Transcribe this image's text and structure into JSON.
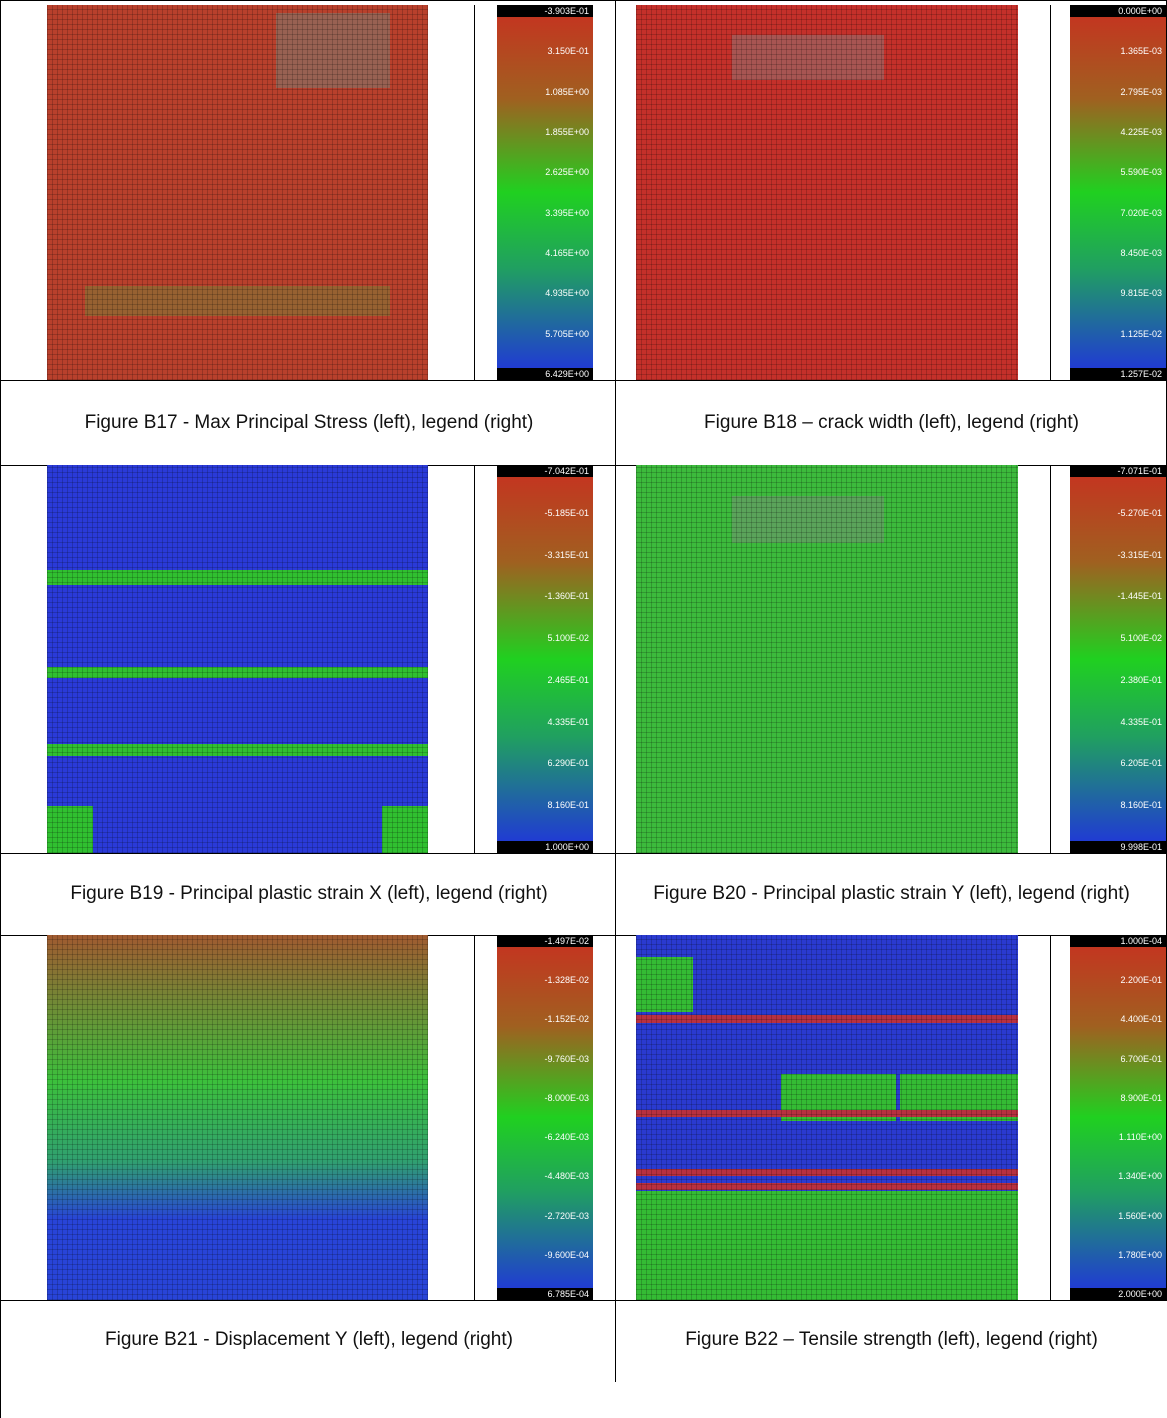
{
  "figures": [
    {
      "caption": "Figure B17 - Max Principal Stress (left), legend (right)",
      "legend": [
        "-3.903E-01",
        "3.150E-01",
        "1.085E+00",
        "1.855E+00",
        "2.625E+00",
        "3.395E+00",
        "4.165E+00",
        "4.935E+00",
        "5.705E+00",
        "6.429E+00"
      ]
    },
    {
      "caption": "Figure B18 – crack width (left), legend (right)",
      "legend": [
        "0.000E+00",
        "1.365E-03",
        "2.795E-03",
        "4.225E-03",
        "5.590E-03",
        "7.020E-03",
        "8.450E-03",
        "9.815E-03",
        "1.125E-02",
        "1.257E-02"
      ]
    },
    {
      "caption": "Figure B19 - Principal plastic strain X (left), legend (right)",
      "legend": [
        "-7.042E-01",
        "-5.185E-01",
        "-3.315E-01",
        "-1.360E-01",
        "5.100E-02",
        "2.465E-01",
        "4.335E-01",
        "6.290E-01",
        "8.160E-01",
        "1.000E+00"
      ]
    },
    {
      "caption": "Figure B20 - Principal plastic strain Y (left), legend (right)",
      "legend": [
        "-7.071E-01",
        "-5.270E-01",
        "-3.315E-01",
        "-1.445E-01",
        "5.100E-02",
        "2.380E-01",
        "4.335E-01",
        "6.205E-01",
        "8.160E-01",
        "9.998E-01"
      ]
    },
    {
      "caption": "Figure B21 - Displacement Y (left), legend (right)",
      "legend": [
        "-1.497E-02",
        "-1.328E-02",
        "-1.152E-02",
        "-9.760E-03",
        "-8.000E-03",
        "-6.240E-03",
        "-4.480E-03",
        "-2.720E-03",
        "-9.600E-04",
        "6.785E-04"
      ]
    },
    {
      "caption": "Figure B22 – Tensile strength (left), legend (right)",
      "legend": [
        "1.000E-04",
        "2.200E-01",
        "4.400E-01",
        "6.700E-01",
        "8.900E-01",
        "1.110E+00",
        "1.340E+00",
        "1.560E+00",
        "1.780E+00",
        "2.000E+00"
      ]
    }
  ]
}
